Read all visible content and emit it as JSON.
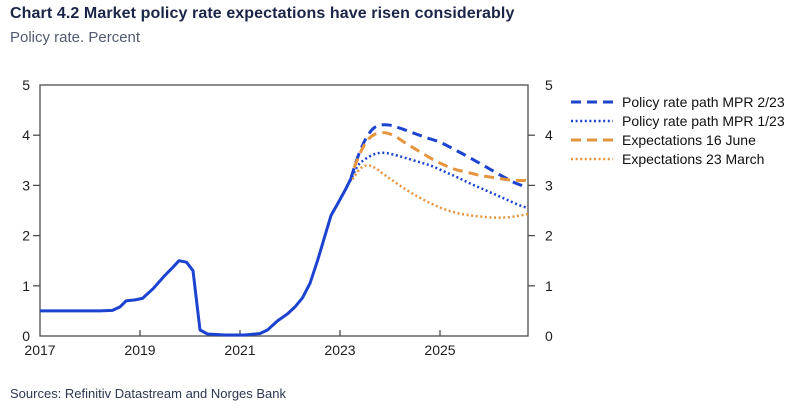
{
  "header": {
    "title": "Chart 4.2 Market policy rate expectations have risen considerably",
    "subtitle": "Policy rate. Percent"
  },
  "footer": {
    "sources": "Sources: Refinitiv Datastream and Norges Bank"
  },
  "colors": {
    "blue": "#1c43d0",
    "orange": "#e6953f",
    "axis": "#4d4d4d",
    "tick_label": "#1c1c1c"
  },
  "chart_data": {
    "type": "line",
    "title": "Chart 4.2 Market policy rate expectations have risen considerably",
    "subtitle": "Policy rate. Percent",
    "xlabel": "",
    "ylabel": "Percent",
    "xlim": [
      2017,
      2026.76
    ],
    "ylim": [
      0,
      5
    ],
    "xticks": [
      2017,
      2019,
      2021,
      2023,
      2025
    ],
    "yticks": [
      0,
      1,
      2,
      3,
      4,
      5
    ],
    "grid": false,
    "legend_position": "right",
    "series": [
      {
        "name": "Policy rate",
        "style": "solid",
        "color": "#1c43d0",
        "in_legend": false,
        "points": [
          [
            2017.0,
            0.5
          ],
          [
            2017.6,
            0.5
          ],
          [
            2018.2,
            0.5
          ],
          [
            2018.45,
            0.51
          ],
          [
            2018.6,
            0.58
          ],
          [
            2018.72,
            0.7
          ],
          [
            2018.9,
            0.72
          ],
          [
            2019.05,
            0.75
          ],
          [
            2019.27,
            0.95
          ],
          [
            2019.5,
            1.21
          ],
          [
            2019.66,
            1.37
          ],
          [
            2019.78,
            1.5
          ],
          [
            2019.93,
            1.47
          ],
          [
            2020.06,
            1.3
          ],
          [
            2020.2,
            0.12
          ],
          [
            2020.35,
            0.04
          ],
          [
            2020.7,
            0.02
          ],
          [
            2021.1,
            0.02
          ],
          [
            2021.4,
            0.05
          ],
          [
            2021.55,
            0.12
          ],
          [
            2021.75,
            0.3
          ],
          [
            2021.95,
            0.44
          ],
          [
            2022.1,
            0.58
          ],
          [
            2022.25,
            0.76
          ],
          [
            2022.4,
            1.05
          ],
          [
            2022.55,
            1.5
          ],
          [
            2022.7,
            2.0
          ],
          [
            2022.82,
            2.4
          ],
          [
            2022.95,
            2.63
          ],
          [
            2023.1,
            2.9
          ],
          [
            2023.25,
            3.2
          ]
        ]
      },
      {
        "name": "Policy rate path MPR 2/23",
        "style": "dashed",
        "color": "#1c43d0",
        "in_legend": true,
        "points": [
          [
            2023.22,
            3.15
          ],
          [
            2023.35,
            3.55
          ],
          [
            2023.5,
            3.9
          ],
          [
            2023.65,
            4.12
          ],
          [
            2023.8,
            4.2
          ],
          [
            2024.0,
            4.2
          ],
          [
            2024.2,
            4.14
          ],
          [
            2024.45,
            4.05
          ],
          [
            2024.7,
            3.96
          ],
          [
            2025.0,
            3.86
          ],
          [
            2025.3,
            3.71
          ],
          [
            2025.6,
            3.55
          ],
          [
            2025.9,
            3.38
          ],
          [
            2026.2,
            3.21
          ],
          [
            2026.5,
            3.05
          ],
          [
            2026.76,
            2.96
          ]
        ]
      },
      {
        "name": "Policy rate path MPR 1/23",
        "style": "dotted",
        "color": "#1c43d0",
        "in_legend": true,
        "points": [
          [
            2023.2,
            3.08
          ],
          [
            2023.35,
            3.38
          ],
          [
            2023.5,
            3.52
          ],
          [
            2023.68,
            3.62
          ],
          [
            2023.85,
            3.65
          ],
          [
            2024.05,
            3.62
          ],
          [
            2024.3,
            3.55
          ],
          [
            2024.6,
            3.46
          ],
          [
            2024.85,
            3.38
          ],
          [
            2025.1,
            3.27
          ],
          [
            2025.35,
            3.16
          ],
          [
            2025.6,
            3.04
          ],
          [
            2025.85,
            2.93
          ],
          [
            2026.1,
            2.82
          ],
          [
            2026.35,
            2.71
          ],
          [
            2026.6,
            2.6
          ],
          [
            2026.76,
            2.55
          ]
        ]
      },
      {
        "name": "Expectations 16 June",
        "style": "dashed",
        "color": "#e6953f",
        "in_legend": true,
        "points": [
          [
            2023.28,
            3.35
          ],
          [
            2023.42,
            3.68
          ],
          [
            2023.55,
            3.9
          ],
          [
            2023.7,
            4.02
          ],
          [
            2023.9,
            4.05
          ],
          [
            2024.1,
            3.98
          ],
          [
            2024.3,
            3.85
          ],
          [
            2024.55,
            3.7
          ],
          [
            2024.8,
            3.55
          ],
          [
            2025.05,
            3.42
          ],
          [
            2025.3,
            3.32
          ],
          [
            2025.55,
            3.26
          ],
          [
            2025.8,
            3.2
          ],
          [
            2026.05,
            3.16
          ],
          [
            2026.3,
            3.12
          ],
          [
            2026.55,
            3.1
          ],
          [
            2026.76,
            3.1
          ]
        ]
      },
      {
        "name": "Expectations 23 March",
        "style": "dotted",
        "color": "#e6953f",
        "in_legend": true,
        "points": [
          [
            2023.25,
            3.12
          ],
          [
            2023.4,
            3.33
          ],
          [
            2023.55,
            3.4
          ],
          [
            2023.7,
            3.35
          ],
          [
            2023.85,
            3.24
          ],
          [
            2024.05,
            3.1
          ],
          [
            2024.3,
            2.93
          ],
          [
            2024.55,
            2.78
          ],
          [
            2024.8,
            2.65
          ],
          [
            2025.05,
            2.54
          ],
          [
            2025.3,
            2.46
          ],
          [
            2025.55,
            2.41
          ],
          [
            2025.8,
            2.38
          ],
          [
            2026.05,
            2.36
          ],
          [
            2026.3,
            2.36
          ],
          [
            2026.55,
            2.39
          ],
          [
            2026.76,
            2.43
          ]
        ]
      }
    ]
  }
}
